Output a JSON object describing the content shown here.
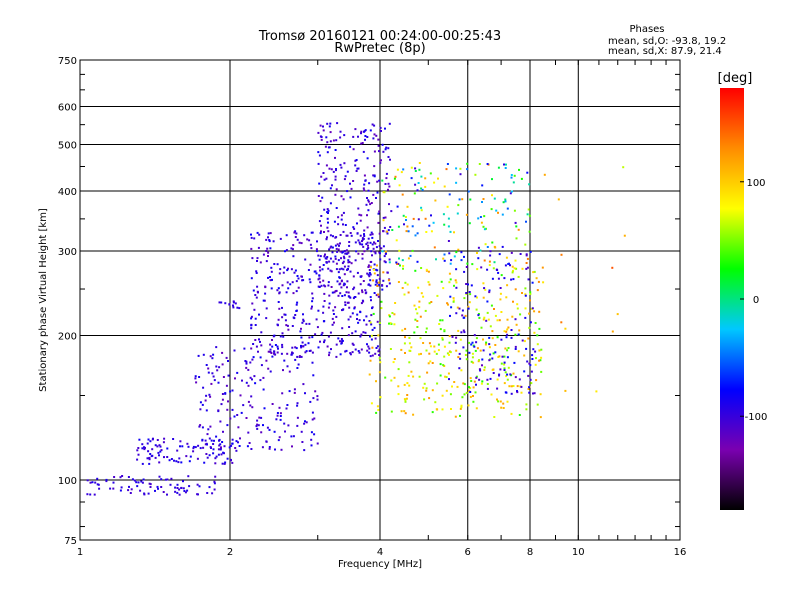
{
  "chart_data": {
    "type": "scatter",
    "title": "Tromsø 20160121 00:24:00-00:25:43",
    "subtitle": "RwPretec (8p)",
    "xlabel": "Frequency [MHz]",
    "ylabel": "Stationary phase Virtual Height [km]",
    "xscale": "log2",
    "yscale": "log",
    "xlim": [
      1,
      16
    ],
    "ylim": [
      75,
      750
    ],
    "xticks": [
      "1",
      "2",
      "4",
      "6",
      "8",
      "10",
      "16"
    ],
    "yticks": [
      "75",
      "100",
      "200",
      "300",
      "400",
      "500",
      "600",
      "750"
    ],
    "grid": true,
    "legend": {
      "heading": "Phases",
      "line1": "mean, sd,O:  -93.8, 19.2",
      "line2": "mean, sd,X:  87.9, 21.4",
      "placement": "top-right"
    },
    "colorbar": {
      "label": "[deg]",
      "ticks": [
        "100",
        "0",
        "-100"
      ],
      "tick_values": [
        100,
        0,
        -100
      ],
      "range": [
        -180,
        180
      ],
      "colormap": [
        "#000000",
        "#7a00b0",
        "#0000ff",
        "#00c8ff",
        "#00ff00",
        "#ffff00",
        "#ff8c00",
        "#ff0000"
      ]
    },
    "clusters": [
      {
        "freq": [
          1.02,
          1.9
        ],
        "height": [
          93,
          102
        ],
        "phase": [
          -110,
          -85
        ],
        "count": 80
      },
      {
        "freq": [
          1.3,
          2.1
        ],
        "height": [
          108,
          122
        ],
        "phase": [
          -110,
          -80
        ],
        "count": 110
      },
      {
        "freq": [
          1.7,
          3.0
        ],
        "height": [
          115,
          190
        ],
        "phase": [
          -120,
          -80
        ],
        "count": 200
      },
      {
        "freq": [
          2.2,
          4.0
        ],
        "height": [
          180,
          330
        ],
        "phase": [
          -120,
          -80
        ],
        "count": 420
      },
      {
        "freq": [
          3.0,
          4.2
        ],
        "height": [
          240,
          560
        ],
        "phase": [
          -120,
          -80
        ],
        "count": 320
      },
      {
        "freq": [
          3.8,
          8.5
        ],
        "height": [
          135,
          280
        ],
        "phase": [
          30,
          130
        ],
        "count": 380
      },
      {
        "freq": [
          4.0,
          8.0
        ],
        "height": [
          280,
          460
        ],
        "phase": [
          -110,
          140
        ],
        "count": 180
      },
      {
        "freq": [
          5.5,
          8.2
        ],
        "height": [
          150,
          300
        ],
        "phase": [
          -120,
          -70
        ],
        "count": 140
      },
      {
        "freq": [
          1.9,
          2.1
        ],
        "height": [
          228,
          236
        ],
        "phase": [
          -100,
          -90
        ],
        "count": 12
      },
      {
        "freq": [
          8.5,
          12.5
        ],
        "height": [
          140,
          500
        ],
        "phase": [
          60,
          150
        ],
        "count": 12
      }
    ]
  }
}
